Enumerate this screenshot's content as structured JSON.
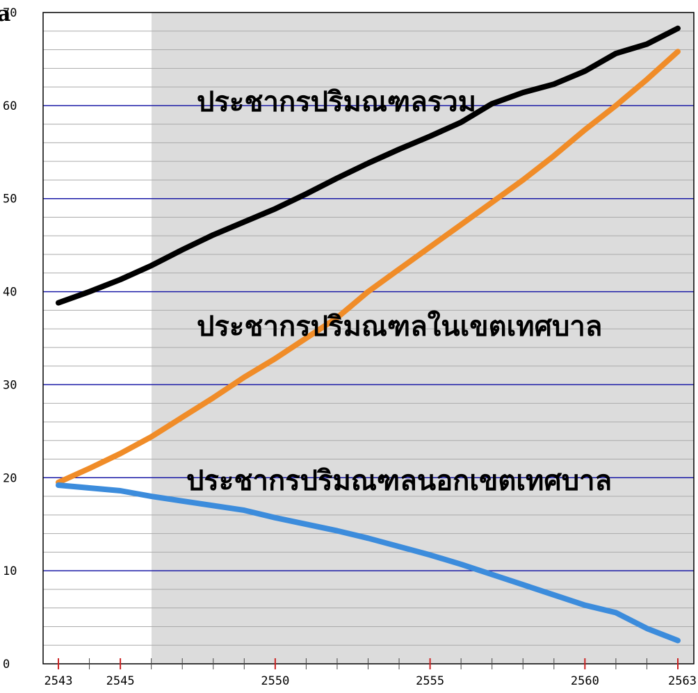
{
  "chart_data": {
    "type": "line",
    "title": "",
    "xlabel": "",
    "ylabel": "",
    "xlim": [
      2543,
      2563
    ],
    "ylim": [
      0,
      70
    ],
    "x_ticks": [
      2543,
      2545,
      2550,
      2555,
      2560,
      2563
    ],
    "y_ticks": [
      0,
      10,
      20,
      30,
      40,
      50,
      60,
      70
    ],
    "grid": true,
    "shaded_region": {
      "from": 2546,
      "to": 2563,
      "color": "#dcdcdc"
    },
    "x": [
      2543,
      2544,
      2545,
      2546,
      2547,
      2548,
      2549,
      2550,
      2551,
      2552,
      2553,
      2554,
      2555,
      2556,
      2557,
      2558,
      2559,
      2560,
      2561,
      2562,
      2563
    ],
    "series": [
      {
        "name": "ประชากรปริมณฑลรวม",
        "color": "#000000",
        "values": [
          38.8,
          40.0,
          41.3,
          42.8,
          44.5,
          46.1,
          47.5,
          48.9,
          50.5,
          52.2,
          53.8,
          55.3,
          56.7,
          58.2,
          60.2,
          61.4,
          62.3,
          63.7,
          65.6,
          66.6,
          68.3
        ]
      },
      {
        "name": "ประชากรปริมณฑลในเขตเทศบาล",
        "color": "#f08c28",
        "values": [
          19.5,
          21.0,
          22.6,
          24.4,
          26.5,
          28.6,
          30.8,
          32.8,
          35.0,
          37.2,
          40.0,
          42.4,
          44.8,
          47.2,
          49.6,
          52.0,
          54.6,
          57.4,
          60.0,
          62.8,
          65.8
        ]
      },
      {
        "name": "ประชากรปริมณฑลนอกเขตเทศบาล",
        "color": "#3c8cdc",
        "values": [
          19.2,
          18.9,
          18.6,
          18.0,
          17.5,
          17.0,
          16.5,
          15.7,
          15.0,
          14.3,
          13.5,
          12.6,
          11.7,
          10.7,
          9.6,
          8.5,
          7.4,
          6.3,
          5.5,
          3.8,
          2.5
        ]
      }
    ]
  },
  "corner_glyph": "a"
}
